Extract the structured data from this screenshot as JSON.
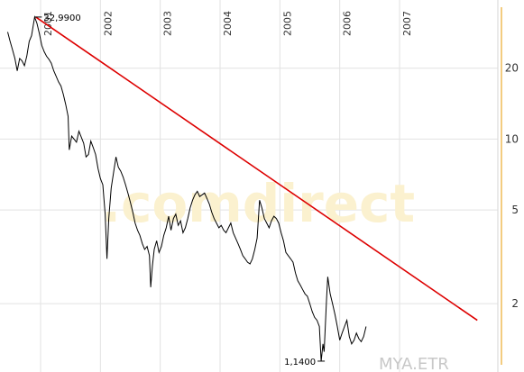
{
  "chart_data": {
    "type": "line",
    "title": "",
    "xlabel": "",
    "ylabel": "",
    "y_scale": "log",
    "ylim": [
      1.1,
      36
    ],
    "xlim": [
      2000.45,
      2008.3
    ],
    "y_ticks": [
      2,
      5,
      10,
      20
    ],
    "x_ticks": [
      {
        "label": "2001",
        "x": 2001
      },
      {
        "label": "2002",
        "x": 2002
      },
      {
        "label": "2003",
        "x": 2003
      },
      {
        "label": "2004",
        "x": 2004
      },
      {
        "label": "2005",
        "x": 2005
      },
      {
        "label": "2006",
        "x": 2006
      },
      {
        "label": "2007",
        "x": 2007
      }
    ],
    "grid": true,
    "series": [
      {
        "name": "",
        "color": "#000000",
        "points": [
          [
            2000.45,
            28.5
          ],
          [
            2000.49,
            26.0
          ],
          [
            2000.53,
            24.0
          ],
          [
            2000.57,
            22.0
          ],
          [
            2000.61,
            19.5
          ],
          [
            2000.65,
            22.0
          ],
          [
            2000.69,
            21.5
          ],
          [
            2000.73,
            20.5
          ],
          [
            2000.77,
            22.5
          ],
          [
            2000.81,
            26.0
          ],
          [
            2000.85,
            27.5
          ],
          [
            2000.9,
            32.99
          ],
          [
            2000.94,
            31.0
          ],
          [
            2000.98,
            28.0
          ],
          [
            2001.02,
            25.0
          ],
          [
            2001.06,
            23.5
          ],
          [
            2001.1,
            22.5
          ],
          [
            2001.14,
            21.8
          ],
          [
            2001.18,
            21.0
          ],
          [
            2001.22,
            19.5
          ],
          [
            2001.26,
            18.5
          ],
          [
            2001.3,
            17.5
          ],
          [
            2001.34,
            16.8
          ],
          [
            2001.38,
            15.5
          ],
          [
            2001.42,
            14.0
          ],
          [
            2001.46,
            12.5
          ],
          [
            2001.48,
            9.0
          ],
          [
            2001.52,
            10.3
          ],
          [
            2001.56,
            10.0
          ],
          [
            2001.6,
            9.7
          ],
          [
            2001.64,
            10.8
          ],
          [
            2001.68,
            10.2
          ],
          [
            2001.72,
            9.6
          ],
          [
            2001.76,
            8.4
          ],
          [
            2001.8,
            8.6
          ],
          [
            2001.84,
            9.8
          ],
          [
            2001.88,
            9.2
          ],
          [
            2001.92,
            8.6
          ],
          [
            2001.96,
            7.5
          ],
          [
            2002.0,
            6.8
          ],
          [
            2002.04,
            6.4
          ],
          [
            2002.08,
            4.8
          ],
          [
            2002.11,
            3.1
          ],
          [
            2002.14,
            4.6
          ],
          [
            2002.18,
            6.2
          ],
          [
            2002.22,
            7.2
          ],
          [
            2002.26,
            8.4
          ],
          [
            2002.3,
            7.6
          ],
          [
            2002.34,
            7.3
          ],
          [
            2002.38,
            6.9
          ],
          [
            2002.42,
            6.4
          ],
          [
            2002.46,
            5.9
          ],
          [
            2002.5,
            5.4
          ],
          [
            2002.54,
            4.9
          ],
          [
            2002.58,
            4.4
          ],
          [
            2002.62,
            4.1
          ],
          [
            2002.66,
            3.9
          ],
          [
            2002.7,
            3.6
          ],
          [
            2002.74,
            3.4
          ],
          [
            2002.78,
            3.5
          ],
          [
            2002.82,
            3.2
          ],
          [
            2002.84,
            2.35
          ],
          [
            2002.87,
            2.9
          ],
          [
            2002.9,
            3.4
          ],
          [
            2002.94,
            3.7
          ],
          [
            2002.98,
            3.3
          ],
          [
            2003.02,
            3.5
          ],
          [
            2003.06,
            3.9
          ],
          [
            2003.1,
            4.2
          ],
          [
            2003.14,
            4.7
          ],
          [
            2003.18,
            4.1
          ],
          [
            2003.22,
            4.6
          ],
          [
            2003.26,
            4.8
          ],
          [
            2003.3,
            4.3
          ],
          [
            2003.34,
            4.5
          ],
          [
            2003.38,
            4.0
          ],
          [
            2003.42,
            4.2
          ],
          [
            2003.46,
            4.6
          ],
          [
            2003.5,
            5.1
          ],
          [
            2003.54,
            5.5
          ],
          [
            2003.58,
            5.8
          ],
          [
            2003.62,
            6.0
          ],
          [
            2003.66,
            5.7
          ],
          [
            2003.7,
            5.8
          ],
          [
            2003.74,
            5.9
          ],
          [
            2003.78,
            5.6
          ],
          [
            2003.82,
            5.3
          ],
          [
            2003.86,
            4.9
          ],
          [
            2003.9,
            4.6
          ],
          [
            2003.94,
            4.4
          ],
          [
            2003.98,
            4.2
          ],
          [
            2004.02,
            4.3
          ],
          [
            2004.06,
            4.1
          ],
          [
            2004.1,
            4.0
          ],
          [
            2004.14,
            4.2
          ],
          [
            2004.18,
            4.4
          ],
          [
            2004.22,
            4.0
          ],
          [
            2004.26,
            3.8
          ],
          [
            2004.3,
            3.6
          ],
          [
            2004.34,
            3.4
          ],
          [
            2004.38,
            3.2
          ],
          [
            2004.42,
            3.1
          ],
          [
            2004.46,
            3.0
          ],
          [
            2004.5,
            2.95
          ],
          [
            2004.54,
            3.1
          ],
          [
            2004.58,
            3.4
          ],
          [
            2004.62,
            3.8
          ],
          [
            2004.64,
            4.6
          ],
          [
            2004.66,
            5.5
          ],
          [
            2004.7,
            5.1
          ],
          [
            2004.74,
            4.6
          ],
          [
            2004.78,
            4.4
          ],
          [
            2004.82,
            4.2
          ],
          [
            2004.86,
            4.5
          ],
          [
            2004.9,
            4.7
          ],
          [
            2004.94,
            4.6
          ],
          [
            2004.98,
            4.4
          ],
          [
            2005.02,
            4.0
          ],
          [
            2005.06,
            3.7
          ],
          [
            2005.1,
            3.3
          ],
          [
            2005.14,
            3.2
          ],
          [
            2005.18,
            3.1
          ],
          [
            2005.22,
            3.0
          ],
          [
            2005.26,
            2.7
          ],
          [
            2005.3,
            2.5
          ],
          [
            2005.34,
            2.4
          ],
          [
            2005.38,
            2.3
          ],
          [
            2005.42,
            2.2
          ],
          [
            2005.46,
            2.15
          ],
          [
            2005.5,
            2.0
          ],
          [
            2005.54,
            1.85
          ],
          [
            2005.58,
            1.75
          ],
          [
            2005.62,
            1.7
          ],
          [
            2005.66,
            1.6
          ],
          [
            2005.69,
            1.14
          ],
          [
            2005.72,
            1.35
          ],
          [
            2005.74,
            1.25
          ],
          [
            2005.78,
            2.1
          ],
          [
            2005.8,
            2.6
          ],
          [
            2005.84,
            2.2
          ],
          [
            2005.88,
            2.0
          ],
          [
            2005.92,
            1.8
          ],
          [
            2005.96,
            1.6
          ],
          [
            2006.0,
            1.4
          ],
          [
            2006.04,
            1.5
          ],
          [
            2006.08,
            1.6
          ],
          [
            2006.12,
            1.7
          ],
          [
            2006.16,
            1.45
          ],
          [
            2006.2,
            1.35
          ],
          [
            2006.24,
            1.4
          ],
          [
            2006.28,
            1.5
          ],
          [
            2006.32,
            1.42
          ],
          [
            2006.36,
            1.38
          ],
          [
            2006.4,
            1.45
          ],
          [
            2006.44,
            1.6
          ]
        ]
      }
    ],
    "trendline": {
      "color": "#dd0000",
      "from": [
        2000.92,
        32.99
      ],
      "to": [
        2008.3,
        1.7
      ]
    },
    "annotations": [
      {
        "text": "32,9900",
        "x": 2000.9,
        "y": 32.99
      },
      {
        "text": "1,1400",
        "x": 2005.69,
        "y": 1.14
      }
    ],
    "watermark": ".comdirect",
    "symbol_label": "MYA.ETR",
    "accent_color": "#f0c060"
  }
}
